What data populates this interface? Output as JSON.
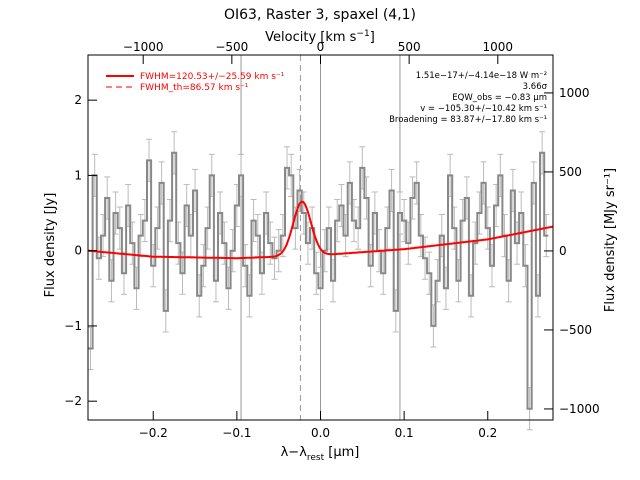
{
  "chart_data": {
    "type": "line",
    "title": "OI63, Raster 3, spaxel (4,1)",
    "xlabel_main": "λ−λ",
    "xlabel_sub": "rest",
    "xlabel_unit": " [μm]",
    "ylabel_left": "Flux density [Jy]",
    "ylabel_right": "Flux density [MJy sr⁻¹]",
    "top_axis_label_main": "Velocity [km s",
    "top_axis_label_sup": "−1",
    "top_axis_label_end": "]",
    "xlim": [
      -0.278,
      0.278
    ],
    "ylim": [
      -2.25,
      2.6
    ],
    "y2lim": [
      -1070,
      1240
    ],
    "x_ticks": [
      -0.2,
      -0.1,
      0.0,
      0.1,
      0.2
    ],
    "x_tick_labels": [
      "−0.2",
      "−0.1",
      "0.0",
      "0.1",
      "0.2"
    ],
    "y_ticks": [
      -2,
      -1,
      0,
      1,
      2
    ],
    "y_tick_labels": [
      "−2",
      "−1",
      "0",
      "1",
      "2"
    ],
    "y2_ticks": [
      -1000,
      -500,
      0,
      500,
      1000
    ],
    "y2_tick_labels": [
      "−1000",
      "−500",
      "0",
      "500",
      "1000"
    ],
    "top_ticks_x": [
      -0.212,
      -0.106,
      0.0,
      0.106,
      0.212
    ],
    "top_tick_labels": [
      "−1000",
      "−500",
      "0",
      "500",
      "1000"
    ],
    "vertical_lines_x": [
      -0.095,
      0.0,
      0.095
    ],
    "dashed_line_x": -0.024,
    "legend": {
      "position": "top-left",
      "entries": [
        {
          "label": "FWHM=120.53+/−25.59 km s⁻¹",
          "style": "solid"
        },
        {
          "label": "FWHM_th=86.57 km s⁻¹",
          "style": "dashed"
        }
      ]
    },
    "annotations": [
      "1.51e−17+/−4.14e−18 W m⁻²",
      "3.66σ",
      "EQW_obs = −0.83 μm",
      "v = −105.30+/−10.42 km s⁻¹",
      "Broadening = 83.87+/−17.80 km s⁻¹"
    ],
    "colors": {
      "data": "#888888",
      "error": "#bbbbbb",
      "fit": "#ff0000",
      "grid": "#999999"
    },
    "data_step_x": [
      -0.275,
      -0.27,
      -0.265,
      -0.26,
      -0.255,
      -0.25,
      -0.245,
      -0.24,
      -0.235,
      -0.23,
      -0.225,
      -0.22,
      -0.215,
      -0.21,
      -0.205,
      -0.2,
      -0.195,
      -0.19,
      -0.185,
      -0.18,
      -0.175,
      -0.17,
      -0.165,
      -0.16,
      -0.155,
      -0.15,
      -0.145,
      -0.14,
      -0.135,
      -0.13,
      -0.125,
      -0.12,
      -0.115,
      -0.11,
      -0.105,
      -0.1,
      -0.095,
      -0.09,
      -0.085,
      -0.08,
      -0.075,
      -0.07,
      -0.065,
      -0.06,
      -0.055,
      -0.05,
      -0.045,
      -0.04,
      -0.035,
      -0.03,
      -0.025,
      -0.02,
      -0.015,
      -0.01,
      -0.005,
      0.0,
      0.005,
      0.01,
      0.015,
      0.02,
      0.025,
      0.03,
      0.035,
      0.04,
      0.045,
      0.05,
      0.055,
      0.06,
      0.065,
      0.07,
      0.075,
      0.08,
      0.085,
      0.09,
      0.095,
      0.1,
      0.105,
      0.11,
      0.115,
      0.12,
      0.125,
      0.13,
      0.135,
      0.14,
      0.145,
      0.15,
      0.155,
      0.16,
      0.165,
      0.17,
      0.175,
      0.18,
      0.185,
      0.19,
      0.195,
      0.2,
      0.205,
      0.21,
      0.215,
      0.22,
      0.225,
      0.23,
      0.235,
      0.24,
      0.245,
      0.25,
      0.255,
      0.26,
      0.265,
      0.27
    ],
    "data_step_y": [
      -1.3,
      1.0,
      -0.1,
      0.2,
      0.7,
      -0.4,
      0.5,
      0.3,
      -0.3,
      0.6,
      0.1,
      -0.5,
      0.2,
      0.4,
      1.2,
      -0.2,
      0.3,
      0.9,
      -0.8,
      0.4,
      1.3,
      0.1,
      -0.3,
      0.6,
      0.2,
      0.8,
      -0.6,
      -0.2,
      0.3,
      1.0,
      -0.4,
      0.5,
      0.1,
      -0.5,
      0.0,
      0.6,
      1.0,
      -0.2,
      -0.6,
      0.4,
      0.2,
      -0.3,
      0.5,
      0.1,
      -0.1,
      0.0,
      0.2,
      1.1,
      1.0,
      0.3,
      0.8,
      0.5,
      0.1,
      0.3,
      -0.3,
      -0.5,
      0.0,
      0.3,
      -0.4,
      0.4,
      0.6,
      0.2,
      0.9,
      0.4,
      0.3,
      1.1,
      0.7,
      -0.2,
      0.5,
      0.0,
      -0.3,
      0.3,
      0.8,
      -0.8,
      0.5,
      0.4,
      0.1,
      0.7,
      0.9,
      0.2,
      -0.1,
      -0.3,
      -1.0,
      -0.4,
      0.2,
      -0.5,
      1.0,
      0.3,
      -0.4,
      0.4,
      0.7,
      -0.6,
      0.1,
      0.5,
      0.9,
      0.3,
      -0.2,
      0.6,
      1.0,
      0.2,
      -0.4,
      0.8,
      0.1,
      0.5,
      -0.2,
      -2.1,
      0.9,
      -0.6,
      1.3,
      0.2
    ],
    "data_err": 0.28,
    "continuum_samples_x": [
      -0.278,
      -0.2,
      -0.1,
      0.0,
      0.1,
      0.2,
      0.278
    ],
    "continuum_samples_y": [
      0.0,
      -0.08,
      -0.1,
      -0.06,
      0.02,
      0.15,
      0.32
    ],
    "gaussian_fit": {
      "center": -0.022,
      "fwhm": 0.025,
      "peak_above_continuum": 0.72
    }
  }
}
